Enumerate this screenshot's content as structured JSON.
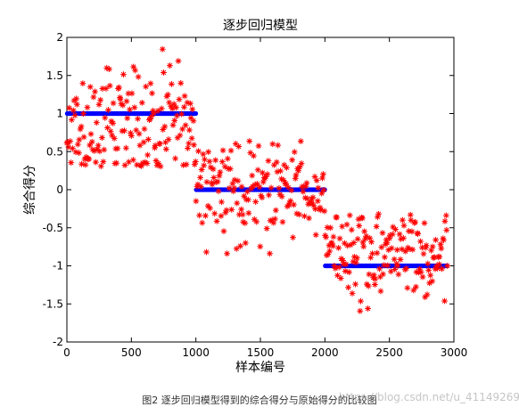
{
  "chart_data": {
    "type": "scatter",
    "title": "逐步回归模型",
    "xlabel": "样本编号",
    "ylabel": "综合得分",
    "xlim": [
      0,
      3000
    ],
    "ylim": [
      -2,
      2
    ],
    "xticks": [
      "0",
      "500",
      "1000",
      "1500",
      "2000",
      "2500",
      "3000"
    ],
    "yticks": [
      "-2",
      "-1.5",
      "-1",
      "-0.5",
      "0",
      "0.5",
      "1",
      "1.5",
      "2"
    ],
    "grid": false,
    "legend": "none",
    "series": [
      {
        "marker": "*",
        "color": "#ff0000",
        "segments": [
          {
            "x_range": [
              0,
              1000
            ],
            "center": 0.8,
            "spread": [
              0.3,
              1.9
            ]
          },
          {
            "x_range": [
              1000,
              2000
            ],
            "center": 0.0,
            "spread": [
              -0.9,
              0.65
            ]
          },
          {
            "x_range": [
              2000,
              2950
            ],
            "center": -0.85,
            "spread": [
              -1.6,
              -0.3
            ]
          }
        ]
      },
      {
        "marker": "o",
        "color": "#0000ff",
        "segments": [
          {
            "x_range": [
              0,
              1000
            ],
            "value": 1
          },
          {
            "x_range": [
              1000,
              2000
            ],
            "value": 0
          },
          {
            "x_range": [
              2000,
              2950
            ],
            "value": -1
          }
        ]
      }
    ]
  },
  "caption": "图2  逐步回归模型得到的综合得分与原始得分的比较图",
  "watermark": "https://blog.csdn.net/u_41149269"
}
